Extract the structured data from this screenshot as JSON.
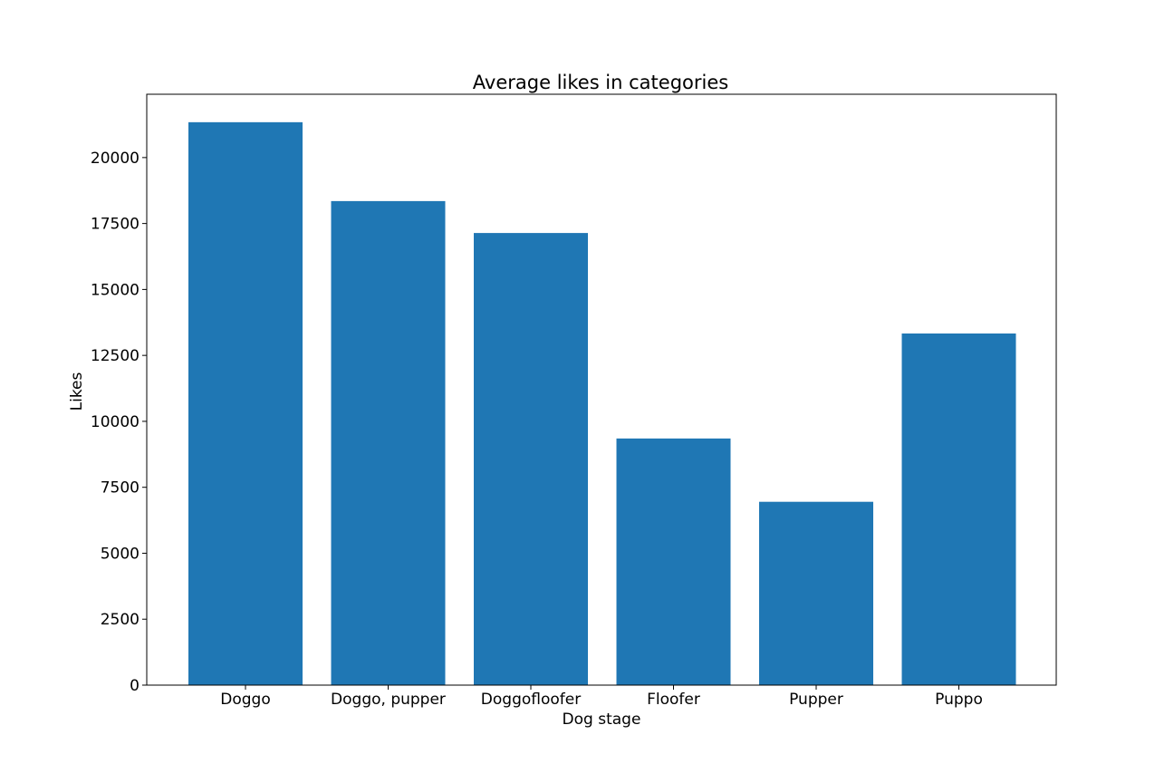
{
  "chart_data": {
    "type": "bar",
    "title": "Average likes in categories",
    "xlabel": "Dog stage",
    "ylabel": "Likes",
    "categories": [
      "Doggo",
      "Doggo, pupper",
      "Doggofloofer",
      "Floofer",
      "Pupper",
      "Puppo"
    ],
    "values": [
      21340,
      18350,
      17140,
      9350,
      6950,
      13330
    ],
    "ylim": [
      0,
      22400
    ],
    "yticks": [
      0,
      2500,
      5000,
      7500,
      10000,
      12500,
      15000,
      17500,
      20000
    ],
    "ytick_labels": [
      "0",
      "2500",
      "5000",
      "7500",
      "10000",
      "12500",
      "15000",
      "17500",
      "20000"
    ],
    "bar_color": "#1f77b4",
    "grid": false
  }
}
